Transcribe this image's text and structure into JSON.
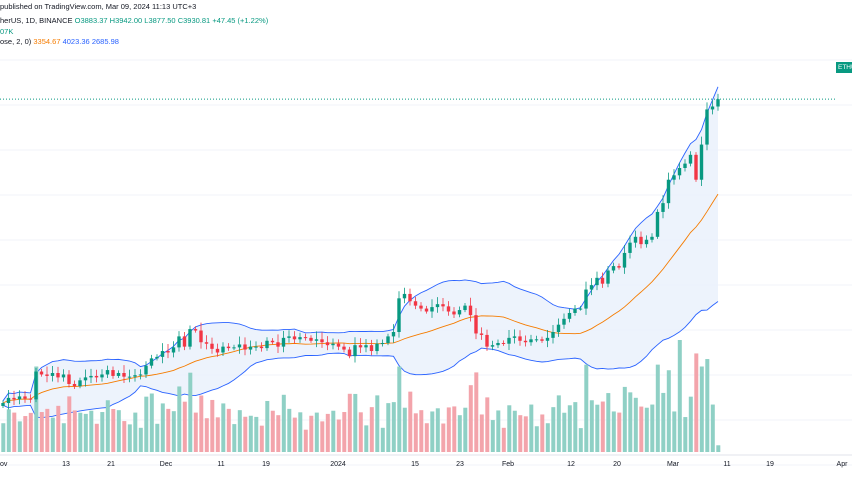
{
  "header": {
    "line1": "published on TradingView.com, Mar 09, 2024 11:13 UTC+3",
    "line2_symbol": "herUS, 1D, BINANCE",
    "line2_o": "O3883.37",
    "line2_h": "H3942.00",
    "line2_l": "L3877.50",
    "line2_c": "C3930.81",
    "line2_change": "+47.45 (+1.22%)",
    "line3_vol": "07K",
    "line4_label": "ose, 2, 0)",
    "line4_basis": "3354.67",
    "line4_upper": "4023.36",
    "line4_lower": "2685.98"
  },
  "price_tag": "ETHU",
  "colors": {
    "up": "#089981",
    "down": "#f23645",
    "up_vol": "#8fd0c5",
    "down_vol": "#f3a4ab",
    "basis": "#f57c00",
    "band": "#2962ff",
    "band_fill": "#e8f0fb"
  },
  "x_axis_labels": [
    "ov",
    "13",
    "21",
    "Dec",
    "11",
    "19",
    "2024",
    "15",
    "23",
    "Feb",
    "12",
    "20",
    "Mar",
    "11",
    "19",
    "Apr"
  ],
  "chart_data": {
    "type": "candlestick",
    "symbol": "ETHUSDT",
    "interval": "1D",
    "exchange": "BINANCE",
    "start_date": "2023-11-03",
    "end_date": "2024-03-09",
    "bollinger": {
      "length": 20,
      "source": "close",
      "mult": 2,
      "offset": 0,
      "basis": 3354.67,
      "upper": 4023.36,
      "lower": 2685.98
    },
    "closes": [
      1855,
      1890,
      1880,
      1900,
      1885,
      1880,
      2070,
      2050,
      2040,
      2060,
      2030,
      2050,
      1985,
      1970,
      2010,
      2030,
      2040,
      2030,
      2050,
      2080,
      2040,
      2060,
      2035,
      2035,
      2045,
      2050,
      2110,
      2160,
      2170,
      2210,
      2200,
      2235,
      2310,
      2240,
      2360,
      2350,
      2270,
      2260,
      2225,
      2200,
      2240,
      2230,
      2235,
      2255,
      2220,
      2240,
      2240,
      2230,
      2280,
      2270,
      2240,
      2300,
      2310,
      2290,
      2305,
      2300,
      2280,
      2290,
      2270,
      2250,
      2260,
      2240,
      2220,
      2175,
      2250,
      2235,
      2250,
      2210,
      2260,
      2265,
      2310,
      2340,
      2570,
      2600,
      2550,
      2520,
      2500,
      2480,
      2510,
      2530,
      2515,
      2480,
      2460,
      2490,
      2520,
      2455,
      2330,
      2320,
      2240,
      2250,
      2265,
      2260,
      2300,
      2310,
      2280,
      2270,
      2290,
      2290,
      2280,
      2300,
      2340,
      2390,
      2430,
      2470,
      2500,
      2500,
      2630,
      2660,
      2710,
      2670,
      2760,
      2790,
      2780,
      2880,
      2950,
      2990,
      2940,
      2970,
      2990,
      3160,
      3220,
      3380,
      3410,
      3460,
      3490,
      3550,
      3380,
      3620,
      3860,
      3880,
      3930
    ],
    "volume_profile": "volume bars per day, higher on Mar 04 spike"
  }
}
